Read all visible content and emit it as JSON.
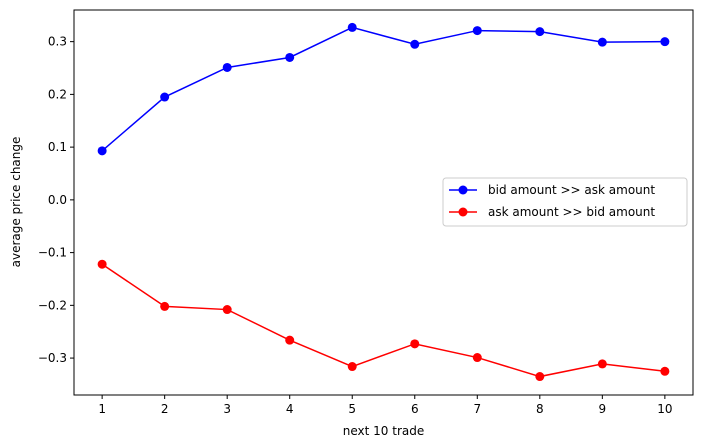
{
  "chart_data": {
    "type": "line",
    "title": "",
    "xlabel": "next 10 trade",
    "ylabel": "average price change",
    "x": [
      1,
      2,
      3,
      4,
      5,
      6,
      7,
      8,
      9,
      10
    ],
    "xlim": [
      0.55,
      10.45
    ],
    "ylim": [
      -0.37,
      0.36
    ],
    "xticks": [
      1,
      2,
      3,
      4,
      5,
      6,
      7,
      8,
      9,
      10
    ],
    "yticks": [
      -0.3,
      -0.2,
      -0.1,
      0.0,
      0.1,
      0.2,
      0.3
    ],
    "ytick_labels": [
      "−0.3",
      "−0.2",
      "−0.1",
      "0.0",
      "0.1",
      "0.2",
      "0.3"
    ],
    "grid": false,
    "legend_position": "center-right",
    "series": [
      {
        "name": "bid amount >> ask amount",
        "color": "#0000ff",
        "marker": "circle",
        "values": [
          0.093,
          0.195,
          0.251,
          0.27,
          0.327,
          0.295,
          0.321,
          0.319,
          0.299,
          0.3
        ]
      },
      {
        "name": "ask amount >> bid amount",
        "color": "#ff0000",
        "marker": "circle",
        "values": [
          -0.122,
          -0.202,
          -0.208,
          -0.266,
          -0.316,
          -0.273,
          -0.299,
          -0.335,
          -0.311,
          -0.325
        ]
      }
    ]
  }
}
